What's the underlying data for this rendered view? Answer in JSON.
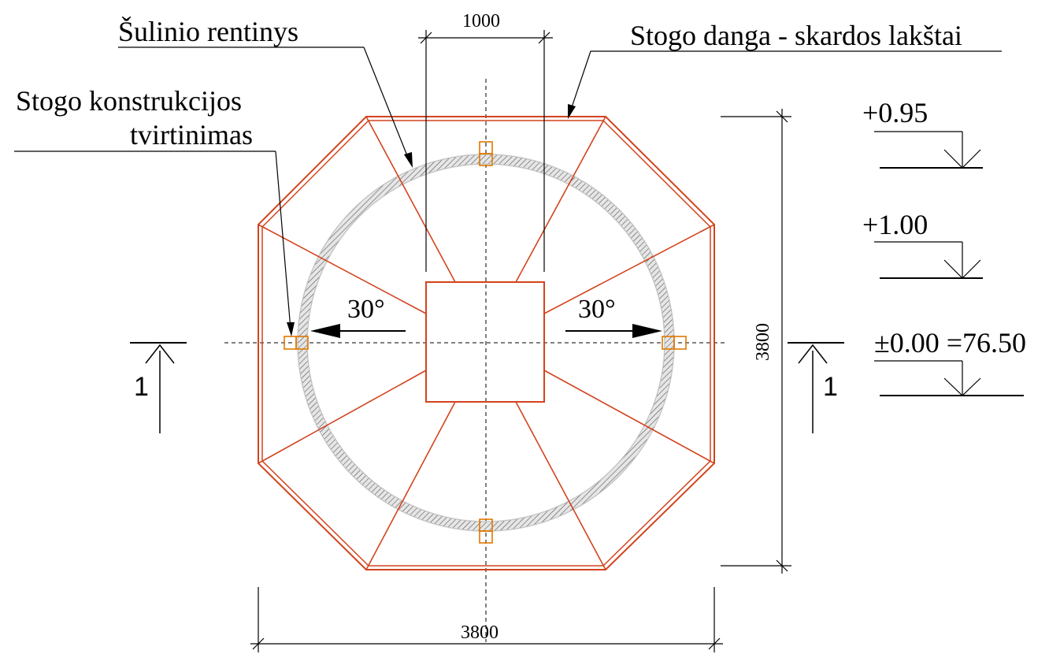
{
  "labels": {
    "well_ring": "Šulinio rentinys",
    "roof_covering": "Stogo danga - skardos lakštai",
    "roof_fixing_line1": "Stogo konstrukcijos",
    "roof_fixing_line2": "tvirtinimas"
  },
  "dimensions": {
    "top_opening": "1000",
    "bottom_width": "3800",
    "right_height": "3800"
  },
  "slopes": {
    "left": "30°",
    "right": "30°"
  },
  "section_marks": {
    "left": "1",
    "right": "1"
  },
  "levels": [
    {
      "text": "+0.95"
    },
    {
      "text": "+1.00"
    },
    {
      "text": "±0.00 =76.50"
    }
  ],
  "colors": {
    "roof": "#d2441e",
    "anchors": "#e07800",
    "ring_fill": "#e6e6e6",
    "lines": "#000000"
  }
}
